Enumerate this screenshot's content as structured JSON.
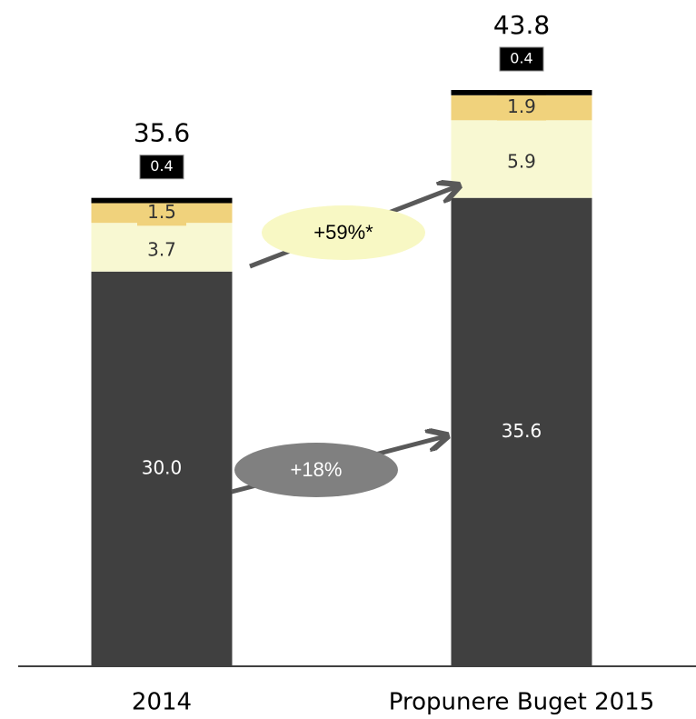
{
  "chart_data": {
    "type": "stacked_bar",
    "categories": [
      "2014",
      "Propunere Buget 2015"
    ],
    "series": [
      {
        "color": "#404040",
        "values": [
          30.0,
          35.6
        ],
        "value_labels": [
          "30.0",
          "35.6"
        ]
      },
      {
        "color": "#f8f8d2",
        "values": [
          3.7,
          5.9
        ]
      },
      {
        "color": "#f0d27c",
        "values": [
          1.5,
          1.9
        ]
      },
      {
        "color": "#000000",
        "values": [
          0.4,
          0.4
        ]
      }
    ],
    "totals": [
      35.6,
      43.8
    ],
    "annotations": [
      "+59%*",
      "+18%"
    ]
  }
}
